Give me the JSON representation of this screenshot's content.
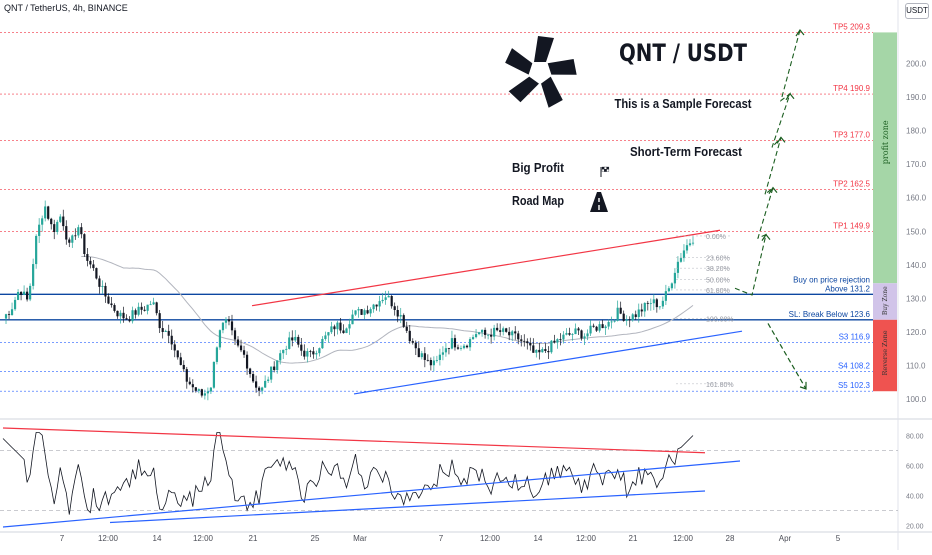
{
  "header": {
    "symbol_label": "QNT / TetherUS, 4h, BINANCE",
    "currency_badge": "USDT"
  },
  "overlay": {
    "title": "QNT / USDT",
    "sample_note": "This is a Sample Forecast",
    "short_term": "Short-Term Forecast",
    "big_profit": "Big Profit",
    "road_map": "Road Map",
    "profit_zone": "profit zone",
    "buy_zone": "Buy Zone",
    "reverse_zone": "Reverse Zone"
  },
  "colors": {
    "candle_up": "#26a69a",
    "candle_down": "#131722",
    "level_red": "#f23645",
    "level_blue": "#2962ff",
    "dark_blue": "#0d47a1",
    "arrow_green": "#1b5e20",
    "profit_zone": "#a5d6a7",
    "buy_zone": "#d1c4e9",
    "reverse_zone": "#ef5350"
  },
  "chart_data": {
    "type": "candlestick",
    "y_axis": {
      "range": [
        97,
        213
      ],
      "ticks": [
        100,
        110,
        120,
        130,
        140,
        150,
        160,
        170,
        180,
        190,
        200
      ]
    },
    "x_axis": {
      "tick_labels": [
        "7",
        "12:00",
        "14",
        "12:00",
        "21",
        "25",
        "Mar",
        "7",
        "12:00",
        "14",
        "12:00",
        "21",
        "12:00",
        "28",
        "Apr",
        "5"
      ]
    },
    "levels": [
      {
        "label": "TP5 209.3",
        "value": 209.3,
        "color": "red"
      },
      {
        "label": "TP4 190.9",
        "value": 190.9,
        "color": "red"
      },
      {
        "label": "TP3 177.0",
        "value": 177.0,
        "color": "red"
      },
      {
        "label": "TP2 162.5",
        "value": 162.5,
        "color": "red"
      },
      {
        "label": "TP1 149.9",
        "value": 149.9,
        "color": "red"
      },
      {
        "label": "Above 131.2",
        "value": 131.2,
        "color": "dark_blue",
        "note": "Buy on price rejection"
      },
      {
        "label": "SL: Break Below 123.6",
        "value": 123.6,
        "color": "dark_blue"
      },
      {
        "label": "S3 116.9",
        "value": 116.9,
        "color": "blue"
      },
      {
        "label": "S4 108.2",
        "value": 108.2,
        "color": "blue"
      },
      {
        "label": "S5 102.3",
        "value": 102.3,
        "color": "blue"
      }
    ],
    "fib_labels": [
      "0.00%",
      "23.60%",
      "38.20%",
      "50.00%",
      "61.80%",
      "100.00%",
      "161.80%"
    ],
    "price_path": [
      124,
      127,
      133,
      129,
      148,
      158,
      150,
      155,
      145,
      152,
      142,
      138,
      132,
      128,
      125,
      124,
      126,
      127,
      129,
      121,
      120,
      112,
      106,
      103,
      101,
      104,
      121,
      123,
      116,
      113,
      106,
      102,
      107,
      112,
      116,
      118,
      114,
      113,
      116,
      119,
      122,
      121,
      125,
      126,
      127,
      129,
      131,
      128,
      124,
      118,
      114,
      111,
      110,
      115,
      117,
      116,
      117,
      120,
      119,
      120,
      120,
      119,
      118,
      116,
      113,
      114,
      116,
      118,
      119,
      120,
      119,
      121,
      122,
      123,
      126,
      124,
      125,
      127,
      129,
      128,
      132,
      140,
      145,
      148
    ],
    "rsi": {
      "ticks": [
        20,
        40,
        60,
        80
      ],
      "range": [
        17,
        87
      ]
    }
  }
}
